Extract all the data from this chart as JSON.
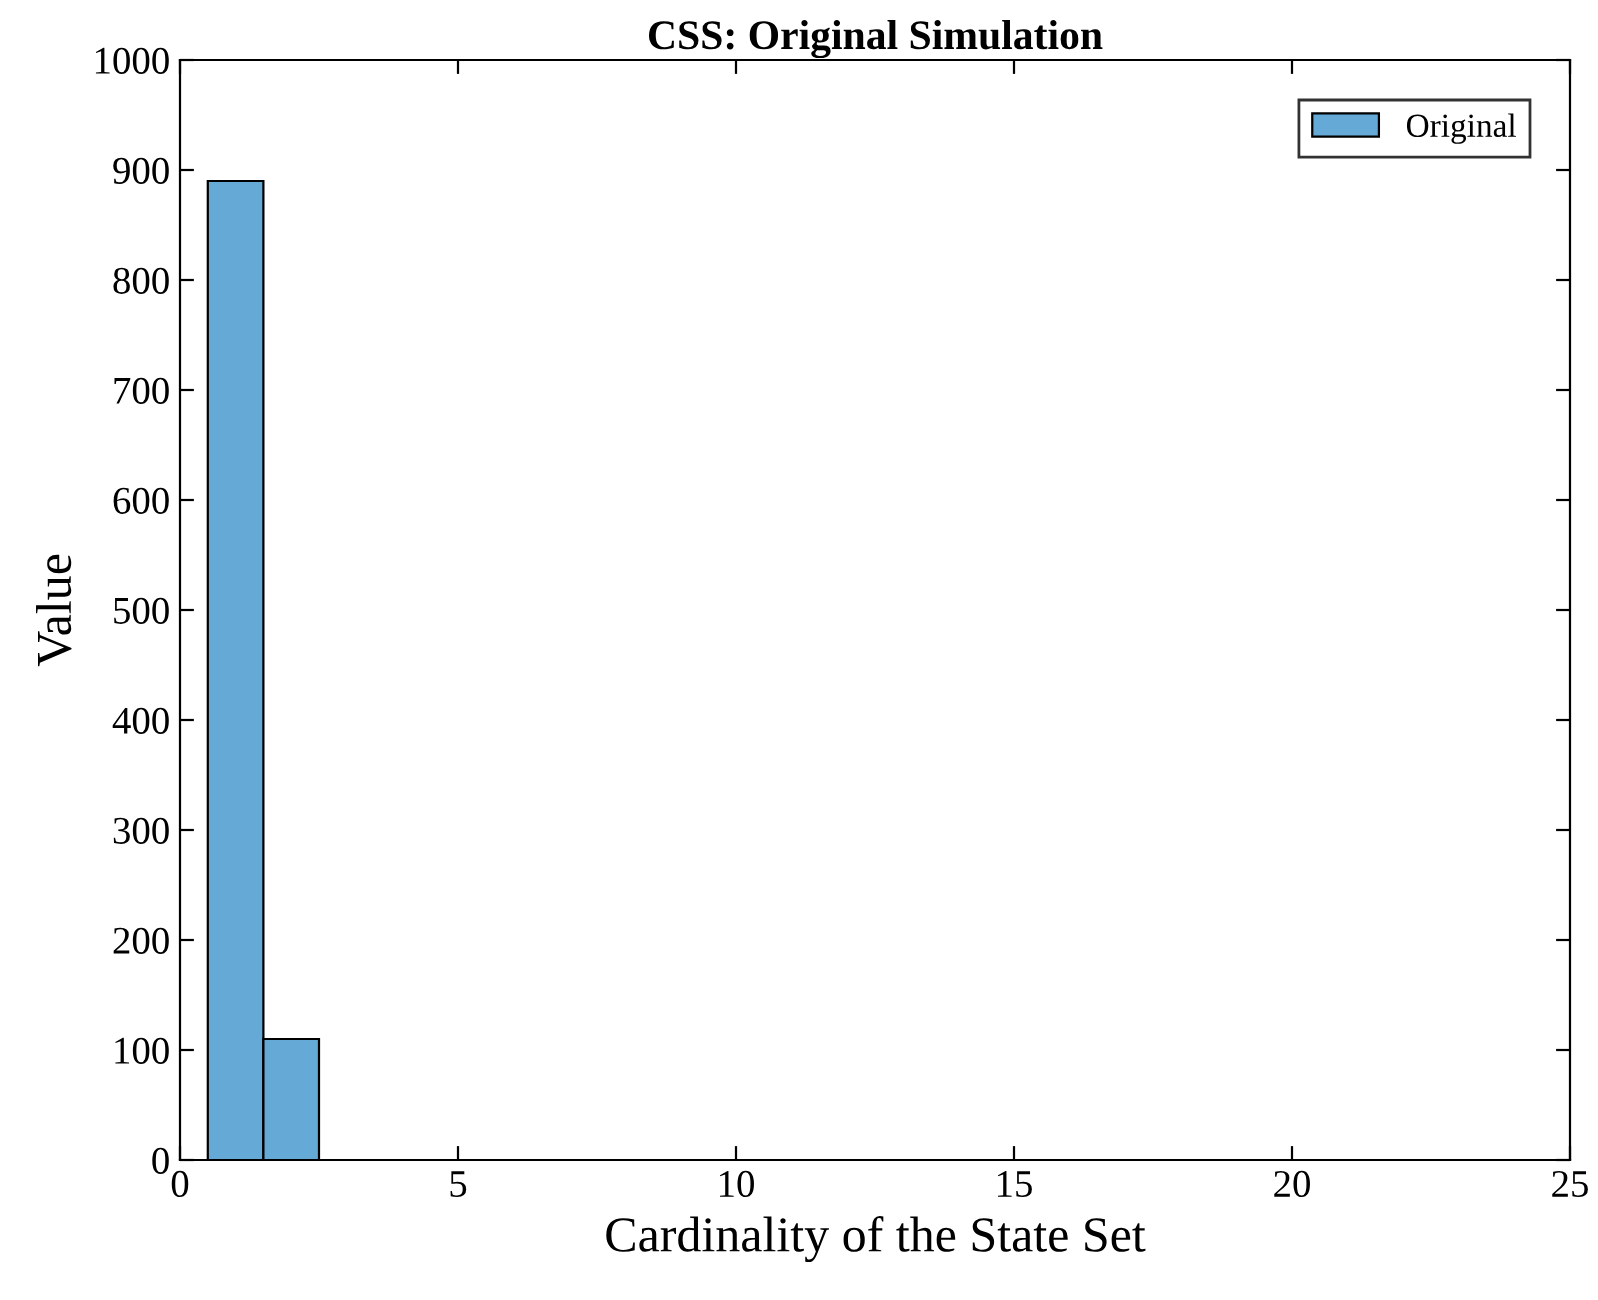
{
  "chart_data": {
    "type": "histogram",
    "title": "CSS: Original Simulation",
    "xlabel": "Cardinality of the State Set",
    "ylabel": "Value",
    "bins": [
      0.5,
      1.5,
      2.5
    ],
    "series": [
      {
        "name": "Original",
        "color": "#65a9d7",
        "values": [
          890,
          110
        ]
      }
    ],
    "xlim": [
      0,
      25
    ],
    "xticks": [
      0,
      5,
      10,
      15,
      20,
      25
    ],
    "ylim": [
      0,
      1000
    ],
    "yticks": [
      0,
      100,
      200,
      300,
      400,
      500,
      600,
      700,
      800,
      900,
      1000
    ],
    "grid": false,
    "legend": "top right"
  }
}
